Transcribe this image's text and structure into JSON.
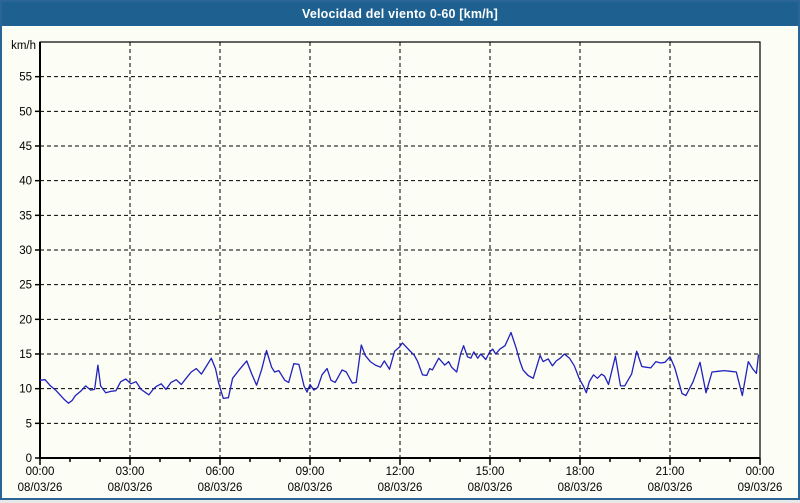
{
  "window": {
    "title": "Velocidad del viento 0-60 [km/h]"
  },
  "colors": {
    "title_bar": "#1e6191",
    "window_border": "#2b6595",
    "background": "#fcfdf5",
    "grid": "#000000",
    "axis": "#000000",
    "line": "#2121bd",
    "title_text": "#ffffff",
    "label_text": "#000000"
  },
  "chart_data": {
    "type": "line",
    "title": "Velocidad del viento 0-60 [km/h]",
    "ylabel_unit": "km/h",
    "ylim": [
      0,
      60
    ],
    "yticks": [
      0,
      5,
      10,
      15,
      20,
      25,
      30,
      35,
      40,
      45,
      50,
      55
    ],
    "xlim_hours": [
      0,
      24
    ],
    "xtick_hours": [
      0,
      3,
      6,
      9,
      12,
      15,
      18,
      21,
      24
    ],
    "xticks": [
      {
        "time": "00:00",
        "date": "08/03/26"
      },
      {
        "time": "03:00",
        "date": "08/03/26"
      },
      {
        "time": "06:00",
        "date": "08/03/26"
      },
      {
        "time": "09:00",
        "date": "08/03/26"
      },
      {
        "time": "12:00",
        "date": "08/03/26"
      },
      {
        "time": "15:00",
        "date": "08/03/26"
      },
      {
        "time": "18:00",
        "date": "08/03/26"
      },
      {
        "time": "21:00",
        "date": "08/03/26"
      },
      {
        "time": "00:00",
        "date": "09/03/26"
      }
    ],
    "grid": "dashed black lines every 5 km/h horizontally and every 3 h vertically; minor x ticks hourly",
    "legend": "none",
    "series": [
      {
        "name": "Velocidad del viento",
        "color": "#2121bd",
        "points": [
          [
            0.0,
            11.2
          ],
          [
            0.17,
            11.3
          ],
          [
            0.35,
            10.4
          ],
          [
            0.52,
            9.8
          ],
          [
            0.67,
            9.1
          ],
          [
            0.82,
            8.4
          ],
          [
            0.95,
            7.9
          ],
          [
            1.07,
            8.3
          ],
          [
            1.18,
            9.0
          ],
          [
            1.35,
            9.6
          ],
          [
            1.52,
            10.4
          ],
          [
            1.69,
            9.8
          ],
          [
            1.82,
            9.9
          ],
          [
            1.93,
            13.4
          ],
          [
            2.02,
            10.4
          ],
          [
            2.19,
            9.4
          ],
          [
            2.36,
            9.6
          ],
          [
            2.53,
            9.7
          ],
          [
            2.69,
            11.0
          ],
          [
            2.86,
            11.4
          ],
          [
            3.03,
            10.7
          ],
          [
            3.2,
            11.0
          ],
          [
            3.37,
            9.9
          ],
          [
            3.53,
            9.4
          ],
          [
            3.63,
            9.1
          ],
          [
            3.77,
            9.9
          ],
          [
            3.87,
            10.3
          ],
          [
            4.04,
            10.7
          ],
          [
            4.2,
            9.9
          ],
          [
            4.37,
            10.9
          ],
          [
            4.54,
            11.3
          ],
          [
            4.71,
            10.6
          ],
          [
            4.87,
            11.5
          ],
          [
            5.04,
            12.4
          ],
          [
            5.21,
            12.9
          ],
          [
            5.38,
            12.1
          ],
          [
            5.54,
            13.2
          ],
          [
            5.71,
            14.4
          ],
          [
            5.85,
            12.9
          ],
          [
            5.95,
            10.9
          ],
          [
            6.11,
            8.6
          ],
          [
            6.28,
            8.7
          ],
          [
            6.42,
            11.5
          ],
          [
            6.62,
            12.6
          ],
          [
            6.89,
            14.0
          ],
          [
            7.05,
            12.2
          ],
          [
            7.22,
            10.5
          ],
          [
            7.39,
            12.8
          ],
          [
            7.55,
            15.5
          ],
          [
            7.72,
            13.1
          ],
          [
            7.82,
            12.4
          ],
          [
            7.96,
            12.6
          ],
          [
            8.16,
            11.2
          ],
          [
            8.29,
            10.9
          ],
          [
            8.46,
            13.6
          ],
          [
            8.63,
            13.5
          ],
          [
            8.8,
            10.4
          ],
          [
            8.9,
            9.5
          ],
          [
            9.0,
            10.6
          ],
          [
            9.13,
            9.8
          ],
          [
            9.26,
            10.2
          ],
          [
            9.4,
            12.0
          ],
          [
            9.57,
            12.9
          ],
          [
            9.7,
            11.2
          ],
          [
            9.84,
            10.9
          ],
          [
            10.07,
            12.7
          ],
          [
            10.21,
            12.4
          ],
          [
            10.41,
            10.8
          ],
          [
            10.54,
            10.9
          ],
          [
            10.71,
            16.3
          ],
          [
            10.84,
            14.8
          ],
          [
            11.01,
            13.9
          ],
          [
            11.18,
            13.4
          ],
          [
            11.35,
            13.1
          ],
          [
            11.48,
            14.0
          ],
          [
            11.65,
            12.8
          ],
          [
            11.82,
            15.4
          ],
          [
            11.98,
            16.0
          ],
          [
            12.08,
            16.6
          ],
          [
            12.32,
            15.5
          ],
          [
            12.48,
            14.8
          ],
          [
            12.59,
            13.9
          ],
          [
            12.75,
            12.0
          ],
          [
            12.89,
            11.9
          ],
          [
            12.99,
            12.9
          ],
          [
            13.08,
            12.7
          ],
          [
            13.29,
            14.4
          ],
          [
            13.49,
            13.4
          ],
          [
            13.62,
            13.9
          ],
          [
            13.72,
            13.1
          ],
          [
            13.89,
            12.4
          ],
          [
            14.02,
            15.0
          ],
          [
            14.12,
            16.2
          ],
          [
            14.25,
            14.6
          ],
          [
            14.36,
            14.4
          ],
          [
            14.46,
            15.3
          ],
          [
            14.59,
            14.4
          ],
          [
            14.69,
            15.0
          ],
          [
            14.86,
            14.2
          ],
          [
            14.99,
            15.3
          ],
          [
            15.09,
            15.7
          ],
          [
            15.19,
            15.0
          ],
          [
            15.33,
            15.7
          ],
          [
            15.5,
            16.2
          ],
          [
            15.7,
            18.1
          ],
          [
            15.87,
            15.9
          ],
          [
            16.0,
            13.9
          ],
          [
            16.1,
            12.7
          ],
          [
            16.27,
            11.9
          ],
          [
            16.44,
            11.5
          ],
          [
            16.67,
            14.8
          ],
          [
            16.77,
            13.9
          ],
          [
            16.94,
            14.3
          ],
          [
            17.08,
            13.3
          ],
          [
            17.21,
            14.0
          ],
          [
            17.34,
            14.4
          ],
          [
            17.48,
            15.0
          ],
          [
            17.65,
            14.4
          ],
          [
            17.81,
            13.3
          ],
          [
            17.98,
            11.4
          ],
          [
            18.11,
            10.4
          ],
          [
            18.21,
            9.4
          ],
          [
            18.31,
            11.0
          ],
          [
            18.45,
            12.0
          ],
          [
            18.58,
            11.5
          ],
          [
            18.72,
            12.1
          ],
          [
            18.82,
            11.8
          ],
          [
            18.95,
            10.6
          ],
          [
            19.18,
            14.7
          ],
          [
            19.35,
            10.4
          ],
          [
            19.49,
            10.4
          ],
          [
            19.72,
            12.1
          ],
          [
            19.89,
            15.4
          ],
          [
            20.06,
            13.2
          ],
          [
            20.19,
            13.1
          ],
          [
            20.36,
            13.0
          ],
          [
            20.53,
            13.9
          ],
          [
            20.69,
            13.7
          ],
          [
            20.83,
            13.8
          ],
          [
            21.0,
            14.6
          ],
          [
            21.16,
            13.0
          ],
          [
            21.4,
            9.3
          ],
          [
            21.53,
            9.0
          ],
          [
            21.77,
            11.0
          ],
          [
            22.0,
            13.8
          ],
          [
            22.2,
            9.4
          ],
          [
            22.4,
            12.4
          ],
          [
            22.6,
            12.5
          ],
          [
            22.81,
            12.6
          ],
          [
            23.01,
            12.5
          ],
          [
            23.21,
            12.4
          ],
          [
            23.41,
            9.0
          ],
          [
            23.61,
            13.9
          ],
          [
            23.75,
            12.9
          ],
          [
            23.88,
            12.2
          ],
          [
            23.95,
            14.9
          ]
        ]
      }
    ]
  }
}
